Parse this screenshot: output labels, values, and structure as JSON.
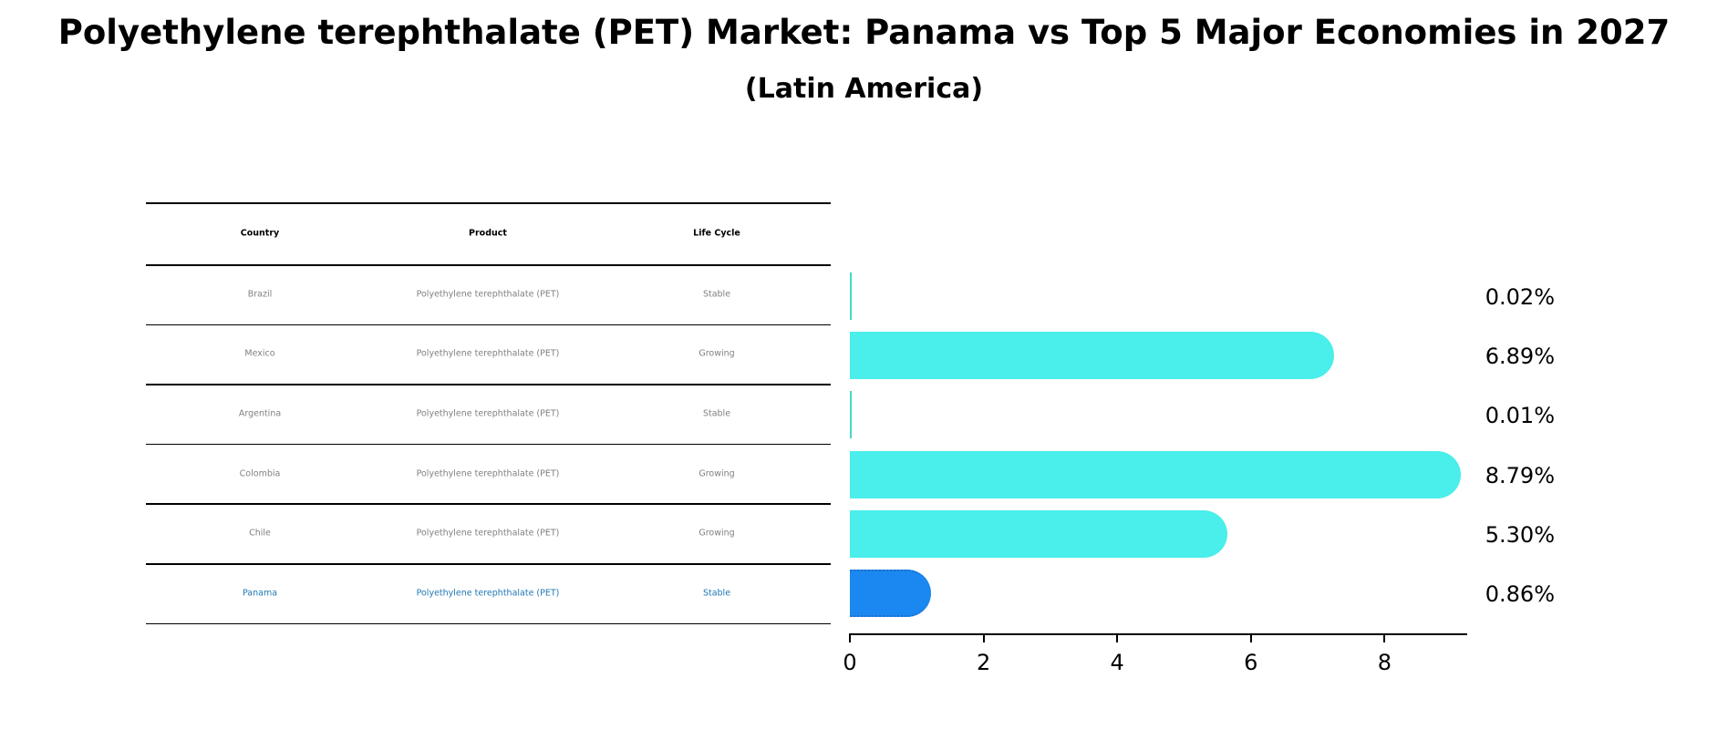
{
  "header": {
    "title": "Polyethylene terephthalate (PET) Market: Panama vs Top 5 Major Economies in 2027",
    "subtitle": "(Latin America)"
  },
  "table": {
    "columns": [
      "Country",
      "Product",
      "Life Cycle"
    ],
    "rows": [
      {
        "country": "Brazil",
        "product": "Polyethylene terephthalate (PET)",
        "life_cycle": "Stable"
      },
      {
        "country": "Mexico",
        "product": "Polyethylene terephthalate (PET)",
        "life_cycle": "Growing"
      },
      {
        "country": "Argentina",
        "product": "Polyethylene terephthalate (PET)",
        "life_cycle": "Stable"
      },
      {
        "country": "Colombia",
        "product": "Polyethylene terephthalate (PET)",
        "life_cycle": "Growing"
      },
      {
        "country": "Chile",
        "product": "Polyethylene terephthalate (PET)",
        "life_cycle": "Growing"
      },
      {
        "country": "Panama",
        "product": "Polyethylene terephthalate (PET)",
        "life_cycle": "Stable"
      }
    ]
  },
  "colors": {
    "bar": "#4aeeea",
    "highlight_bar": "#1a88f0",
    "highlight_text": "#1f77b4",
    "cell_text": "#808080"
  },
  "chart_data": {
    "type": "bar",
    "orientation": "horizontal",
    "title": "Polyethylene terephthalate (PET) Market: Panama vs Top 5 Major Economies in 2027",
    "subtitle": "(Latin America)",
    "categories": [
      "Brazil",
      "Mexico",
      "Argentina",
      "Colombia",
      "Chile",
      "Panama"
    ],
    "values": [
      0.02,
      6.89,
      0.01,
      8.79,
      5.3,
      0.86
    ],
    "value_labels": [
      "0.02%",
      "6.89%",
      "0.01%",
      "8.79%",
      "5.30%",
      "0.86%"
    ],
    "highlight": "Panama",
    "xlabel": "",
    "ylabel": "",
    "xlim": [
      0,
      9.2
    ],
    "xticks": [
      0,
      2,
      4,
      6,
      8
    ],
    "xtick_labels": [
      "0",
      "2",
      "4",
      "6",
      "8"
    ],
    "grid": false,
    "legend": null
  }
}
